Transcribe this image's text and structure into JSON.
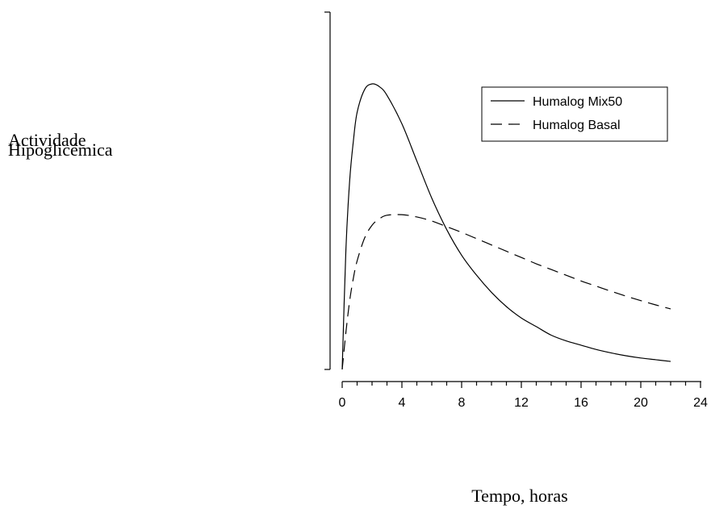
{
  "chart_data": {
    "type": "line",
    "title": "",
    "ylabel_lines": [
      "Actividade",
      "Hipoglicémica"
    ],
    "xlabel": "Tempo, horas",
    "xlim": [
      0,
      24
    ],
    "ylim": [
      0,
      1
    ],
    "x_ticks": [
      0,
      4,
      8,
      12,
      16,
      20,
      24
    ],
    "x_tick_labels": [
      "0",
      "4",
      "8",
      "12",
      "16",
      "20",
      "24"
    ],
    "x_minor_step": 1,
    "y_ticks_shown": false,
    "grid": false,
    "legend_position": "top-right",
    "series": [
      {
        "name": "Humalog Mix50",
        "style": "solid",
        "x": [
          0,
          0.25,
          0.5,
          0.75,
          1,
          1.5,
          2,
          2.5,
          3,
          4,
          5,
          6,
          7,
          8,
          9,
          10,
          11,
          12,
          13,
          14,
          15,
          16,
          17,
          18,
          19,
          20,
          21,
          22
        ],
        "y": [
          0,
          0.42,
          0.66,
          0.8,
          0.9,
          0.98,
          1.0,
          0.99,
          0.96,
          0.86,
          0.73,
          0.6,
          0.49,
          0.4,
          0.33,
          0.27,
          0.22,
          0.18,
          0.15,
          0.12,
          0.1,
          0.085,
          0.07,
          0.058,
          0.048,
          0.04,
          0.034,
          0.028
        ]
      },
      {
        "name": "Humalog Basal",
        "style": "dashed",
        "x": [
          0,
          0.25,
          0.5,
          0.75,
          1,
          1.5,
          2,
          2.5,
          3,
          4,
          5,
          6,
          7,
          8,
          9,
          10,
          11,
          12,
          13,
          14,
          15,
          16,
          17,
          18,
          19,
          20,
          21,
          22
        ],
        "y": [
          0,
          0.13,
          0.24,
          0.32,
          0.38,
          0.46,
          0.505,
          0.528,
          0.54,
          0.542,
          0.534,
          0.52,
          0.5,
          0.48,
          0.458,
          0.436,
          0.414,
          0.392,
          0.37,
          0.35,
          0.33,
          0.31,
          0.292,
          0.274,
          0.257,
          0.241,
          0.226,
          0.212
        ]
      }
    ]
  }
}
